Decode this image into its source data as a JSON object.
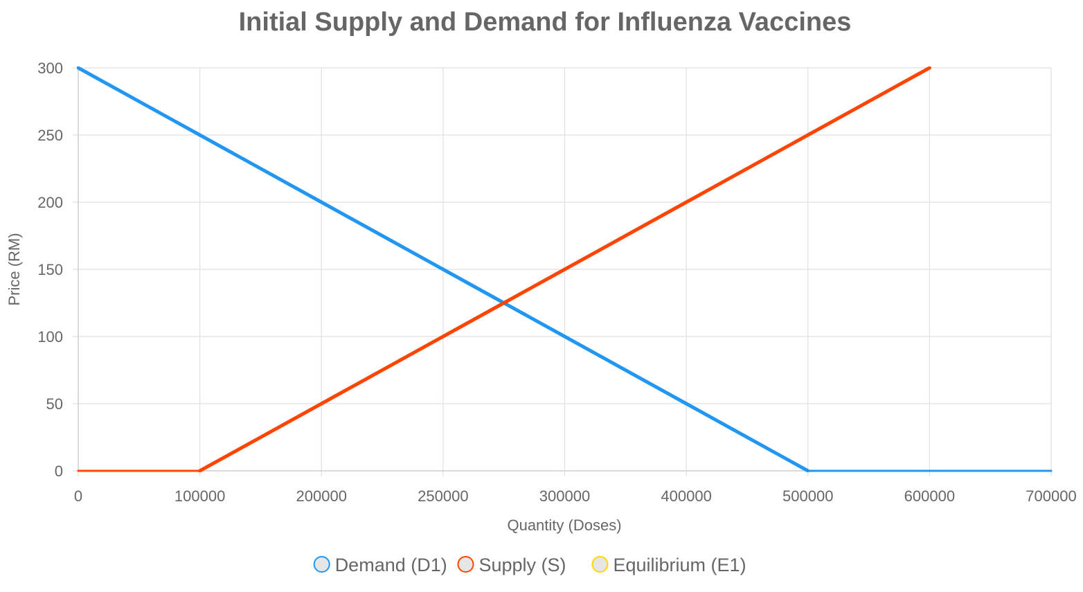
{
  "chart_data": {
    "type": "line",
    "title": "Initial Supply and Demand for Influenza Vaccines",
    "xlabel": "Quantity (Doses)",
    "ylabel": "Price (RM)",
    "x_ticks": [
      "0",
      "100000",
      "200000",
      "250000",
      "300000",
      "400000",
      "500000",
      "600000",
      "700000"
    ],
    "y_ticks": [
      0,
      50,
      100,
      150,
      200,
      250,
      300
    ],
    "ylim": [
      0,
      300
    ],
    "grid": true,
    "legend_position": "bottom",
    "series": [
      {
        "name": "Demand (D1)",
        "color": "#2196F3",
        "points": [
          {
            "x": 0,
            "y": 300
          },
          {
            "x": 100000,
            "y": 250
          },
          {
            "x": 200000,
            "y": 200
          },
          {
            "x": 250000,
            "y": 150
          },
          {
            "x": 275000,
            "y": 125
          },
          {
            "x": 300000,
            "y": 100
          },
          {
            "x": 400000,
            "y": 50
          },
          {
            "x": 500000,
            "y": 0
          },
          {
            "x": 600000,
            "y": 0
          },
          {
            "x": 700000,
            "y": 0
          }
        ]
      },
      {
        "name": "Supply (S)",
        "color": "#FF4500",
        "points": [
          {
            "x": 0,
            "y": 0
          },
          {
            "x": 100000,
            "y": 0
          },
          {
            "x": 200000,
            "y": 50
          },
          {
            "x": 250000,
            "y": 100
          },
          {
            "x": 275000,
            "y": 125
          },
          {
            "x": 300000,
            "y": 150
          },
          {
            "x": 400000,
            "y": 200
          },
          {
            "x": 500000,
            "y": 250
          },
          {
            "x": 600000,
            "y": 300
          }
        ]
      },
      {
        "name": "Equilibrium (E1)",
        "color": "#FFD700",
        "points": []
      }
    ]
  }
}
